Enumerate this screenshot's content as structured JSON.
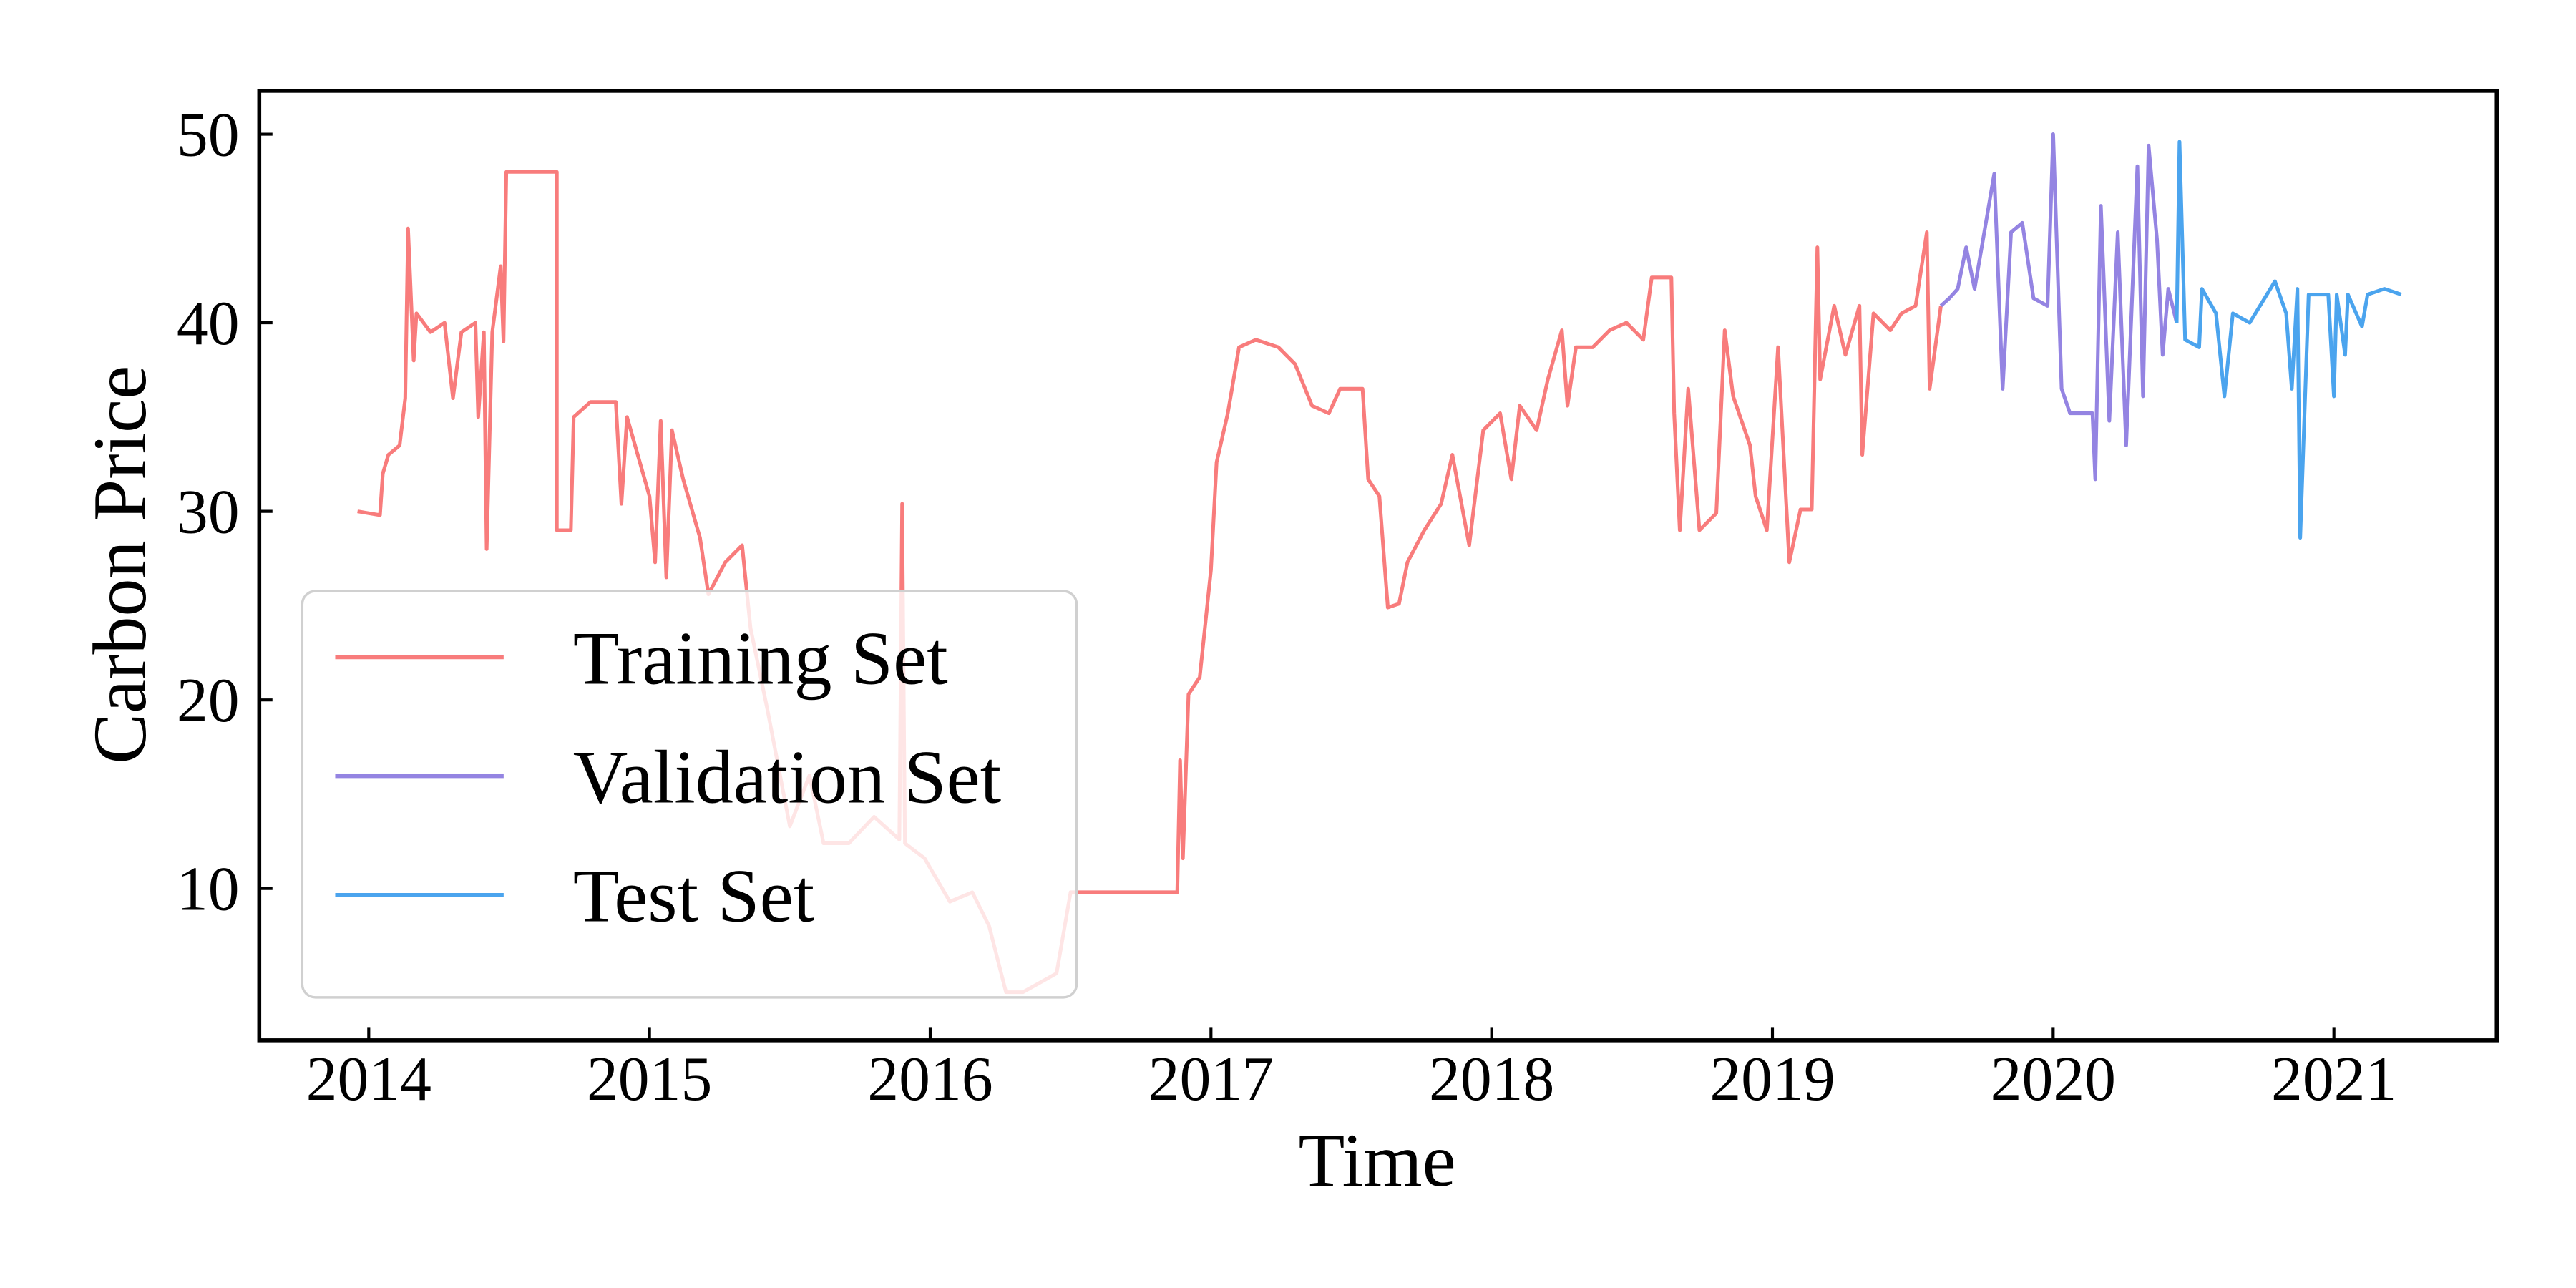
{
  "chart_data": {
    "type": "line",
    "xlabel": "Time",
    "ylabel": "Carbon Price",
    "xlim": [
      2013.61,
      2021.58
    ],
    "ylim": [
      1.95,
      52.3
    ],
    "xticks": [
      2014,
      2015,
      2016,
      2017,
      2018,
      2019,
      2020,
      2021
    ],
    "yticks": [
      10,
      20,
      30,
      40,
      50
    ],
    "legend": "lower left",
    "series": [
      {
        "name": "Training Set",
        "color": "#f87c7c",
        "x": [
          2013.96,
          2014.04,
          2014.05,
          2014.07,
          2014.11,
          2014.13,
          2014.14,
          2014.16,
          2014.17,
          2014.22,
          2014.27,
          2014.3,
          2014.33,
          2014.38,
          2014.39,
          2014.41,
          2014.42,
          2014.44,
          2014.47,
          2014.48,
          2014.49,
          2014.67,
          2014.67,
          2014.72,
          2014.73,
          2014.79,
          2014.88,
          2014.9,
          2014.92,
          2015.0,
          2015.02,
          2015.04,
          2015.06,
          2015.08,
          2015.12,
          2015.18,
          2015.21,
          2015.27,
          2015.33,
          2015.36,
          2015.42,
          2015.5,
          2015.57,
          2015.62,
          2015.71,
          2015.8,
          2015.89,
          2015.9,
          2015.91,
          2015.98,
          2016.07,
          2016.15,
          2016.21,
          2016.27,
          2016.33,
          2016.45,
          2016.5,
          2016.88,
          2016.89,
          2016.9,
          2016.92,
          2016.96,
          2017.0,
          2017.02,
          2017.06,
          2017.1,
          2017.16,
          2017.24,
          2017.3,
          2017.36,
          2017.42,
          2017.46,
          2017.54,
          2017.56,
          2017.6,
          2017.63,
          2017.67,
          2017.7,
          2017.76,
          2017.82,
          2017.86,
          2017.92,
          2017.97,
          2018.03,
          2018.07,
          2018.1,
          2018.16,
          2018.2,
          2018.25,
          2018.27,
          2018.3,
          2018.36,
          2018.42,
          2018.48,
          2018.54,
          2018.57,
          2018.64,
          2018.65,
          2018.67,
          2018.7,
          2018.74,
          2018.8,
          2018.83,
          2018.86,
          2018.92,
          2018.94,
          2018.98,
          2019.02,
          2019.06,
          2019.1,
          2019.14,
          2019.16,
          2019.17,
          2019.22,
          2019.26,
          2019.31,
          2019.32,
          2019.36,
          2019.42,
          2019.46,
          2019.51,
          2019.55,
          2019.56,
          2019.6
        ],
        "values": [
          30,
          29.8,
          32,
          33,
          33.5,
          36,
          45,
          38,
          40.5,
          39.5,
          40,
          36,
          39.5,
          40,
          35,
          39.5,
          28,
          39.5,
          43,
          39,
          48,
          48,
          29,
          29,
          35,
          35.8,
          35.8,
          30.4,
          35,
          30.8,
          27.3,
          34.8,
          26.5,
          34.3,
          31.7,
          28.6,
          25.6,
          27.3,
          28.2,
          23.8,
          19.5,
          13.3,
          16,
          12.4,
          12.4,
          13.8,
          12.6,
          30.4,
          12.4,
          11.6,
          9.3,
          9.8,
          8,
          4.5,
          4.5,
          5.5,
          9.8,
          9.8,
          16.8,
          11.6,
          20.3,
          21.2,
          26.9,
          32.6,
          35.2,
          38.7,
          39.1,
          38.7,
          37.8,
          35.6,
          35.2,
          36.5,
          36.5,
          31.7,
          30.8,
          24.9,
          25.1,
          27.3,
          29,
          30.4,
          33,
          28.2,
          34.3,
          35.2,
          31.7,
          35.6,
          34.3,
          37,
          39.6,
          35.6,
          38.7,
          38.7,
          39.6,
          40,
          39.1,
          42.4,
          42.4,
          35.2,
          29,
          36.5,
          29,
          29.9,
          39.6,
          36.1,
          33.5,
          30.8,
          29,
          38.7,
          27.3,
          30.1,
          30.1,
          44,
          37,
          40.9,
          38.3,
          40.9,
          33,
          40.5,
          39.6,
          40.5,
          40.9,
          44.8,
          36.5,
          40.9
        ]
      },
      {
        "name": "Validation Set",
        "color": "#9484e2",
        "x": [
          2019.6,
          2019.63,
          2019.66,
          2019.69,
          2019.72,
          2019.75,
          2019.79,
          2019.82,
          2019.85,
          2019.89,
          2019.93,
          2019.98,
          2020.0,
          2020.03,
          2020.06,
          2020.14,
          2020.15,
          2020.17,
          2020.2,
          2020.23,
          2020.26,
          2020.3,
          2020.32,
          2020.34,
          2020.37,
          2020.39,
          2020.41,
          2020.44
        ],
        "values": [
          40.9,
          41.3,
          41.8,
          44,
          41.8,
          44.4,
          47.9,
          36.5,
          44.8,
          45.3,
          41.3,
          40.9,
          50,
          36.5,
          35.2,
          35.2,
          31.7,
          46.2,
          34.8,
          44.8,
          33.5,
          48.3,
          36.1,
          49.4,
          44.4,
          38.3,
          41.8,
          40
        ]
      },
      {
        "name": "Test Set",
        "color": "#4ba4ee",
        "x": [
          2020.44,
          2020.45,
          2020.47,
          2020.52,
          2020.53,
          2020.58,
          2020.61,
          2020.64,
          2020.7,
          2020.79,
          2020.83,
          2020.85,
          2020.87,
          2020.88,
          2020.91,
          2020.98,
          2021.0,
          2021.01,
          2021.04,
          2021.05,
          2021.1,
          2021.12,
          2021.18,
          2021.24
        ],
        "values": [
          40,
          49.6,
          39.1,
          38.7,
          41.8,
          40.5,
          36.1,
          40.5,
          40,
          42.2,
          40.5,
          36.5,
          41.8,
          28.6,
          41.5,
          41.5,
          36.1,
          41.5,
          38.3,
          41.5,
          39.8,
          41.5,
          41.8,
          41.5
        ]
      }
    ]
  }
}
